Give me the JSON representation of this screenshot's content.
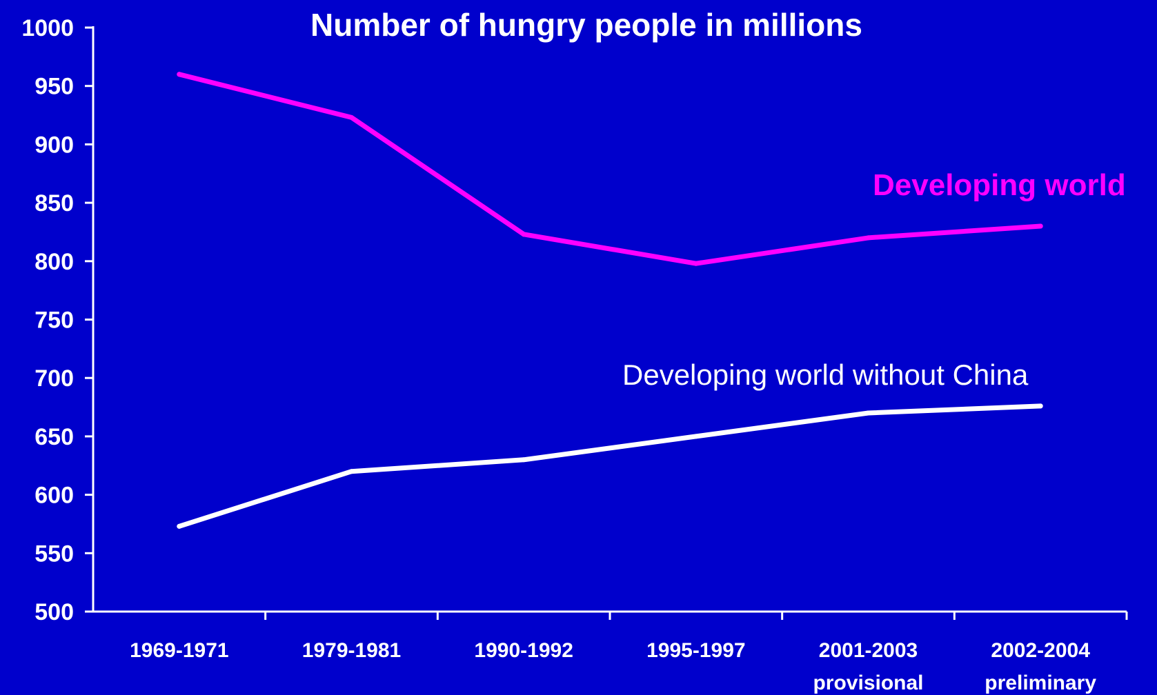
{
  "colors": {
    "background": "#0000cc",
    "axis": "#ffffff",
    "text": "#ffffff"
  },
  "chart_data": {
    "type": "line",
    "title": "Number of hungry people in millions",
    "xlabel": "",
    "ylabel": "",
    "ylim": [
      500,
      1000
    ],
    "y_ticks": [
      1000,
      950,
      900,
      850,
      800,
      750,
      700,
      650,
      600,
      550,
      500
    ],
    "y_tick_labels": [
      "1000",
      "950",
      "900",
      "850",
      "800",
      "750",
      "700",
      "650",
      "600",
      "550",
      "500"
    ],
    "categories": [
      "1969-1971",
      "1979-1981",
      "1990-1992",
      "1995-1997",
      "2001-2003",
      "2002-2004"
    ],
    "category_sublabels": [
      "",
      "",
      "",
      "",
      "provisional",
      "preliminary"
    ],
    "grid": false,
    "legend": "inline labels",
    "series": [
      {
        "name": "Developing world",
        "color": "#ff00ff",
        "values": [
          960,
          923,
          823,
          798,
          820,
          830
        ]
      },
      {
        "name": "Developing world without China",
        "color": "#ffffff",
        "values": [
          573,
          620,
          630,
          650,
          670,
          676
        ]
      }
    ]
  }
}
